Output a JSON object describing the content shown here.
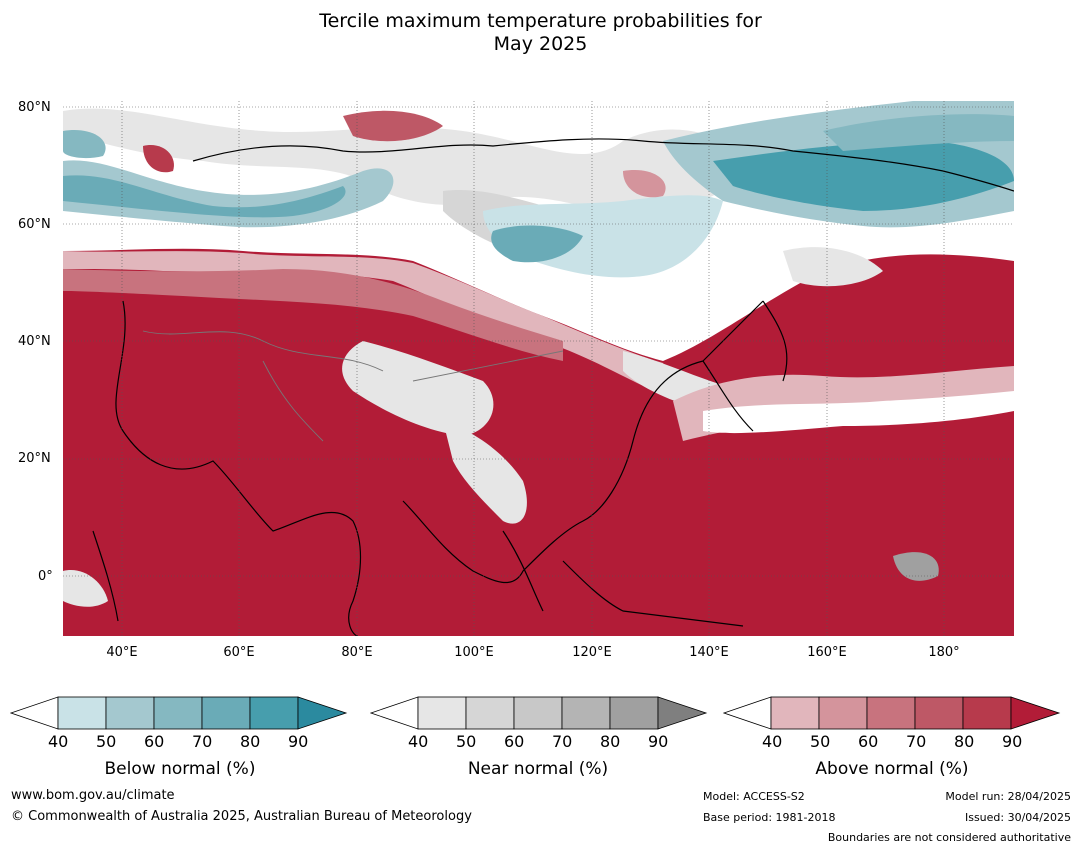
{
  "title_line1": "Tercile maximum temperature probabilities for",
  "title_line2": "May 2025",
  "lat_labels": [
    "80°N",
    "60°N",
    "40°N",
    "20°N",
    "0°"
  ],
  "lon_labels": [
    "40°E",
    "60°E",
    "80°E",
    "100°E",
    "120°E",
    "140°E",
    "160°E",
    "180°"
  ],
  "colorbars": [
    {
      "title": "Below normal (%)",
      "ticks": [
        "40",
        "50",
        "60",
        "70",
        "80",
        "90"
      ],
      "colors": [
        "#ffffff",
        "#c9e2e7",
        "#a4c8cf",
        "#85b8c1",
        "#6aabb7",
        "#479ead",
        "#2b8a9f"
      ]
    },
    {
      "title": "Near normal (%)",
      "ticks": [
        "40",
        "50",
        "60",
        "70",
        "80",
        "90"
      ],
      "colors": [
        "#ffffff",
        "#e6e6e6",
        "#d6d6d6",
        "#c8c8c8",
        "#b4b4b4",
        "#a0a0a0",
        "#7f7f7f"
      ]
    },
    {
      "title": "Above normal (%)",
      "ticks": [
        "40",
        "50",
        "60",
        "70",
        "80",
        "90"
      ],
      "colors": [
        "#ffffff",
        "#e1b6bc",
        "#d4949c",
        "#c8737e",
        "#be5866",
        "#b73a4c",
        "#b21c37"
      ]
    }
  ],
  "footer": {
    "url": "www.bom.gov.au/climate",
    "copyright": "© Commonwealth of Australia 2025, Australian Bureau of Meteorology",
    "model": "Model: ACCESS-S2",
    "base_period": "Base period: 1981-2018",
    "model_run": "Model run: 28/04/2025",
    "issued": "Issued: 30/04/2025",
    "disclaimer": "Boundaries are not considered authoritative"
  }
}
